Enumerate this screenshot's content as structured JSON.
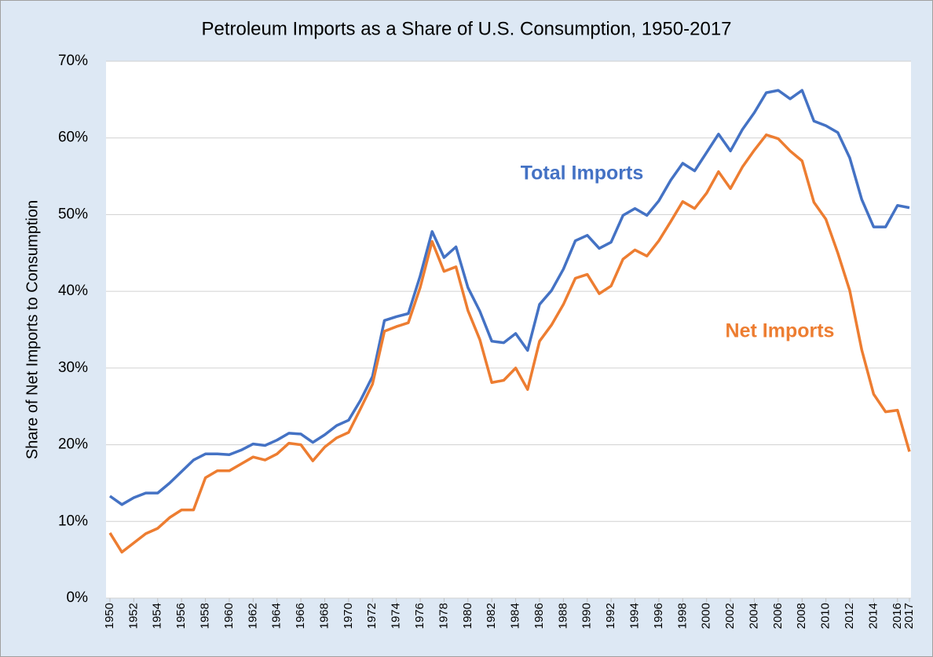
{
  "chart_data": {
    "type": "line",
    "title": "Petroleum Imports as a Share of U.S. Consumption, 1950-2017",
    "y_label": "Share of Net Imports to Consumption",
    "x": [
      1950,
      1951,
      1952,
      1953,
      1954,
      1955,
      1956,
      1957,
      1958,
      1959,
      1960,
      1961,
      1962,
      1963,
      1964,
      1965,
      1966,
      1967,
      1968,
      1969,
      1970,
      1971,
      1972,
      1973,
      1974,
      1975,
      1976,
      1977,
      1978,
      1979,
      1980,
      1981,
      1982,
      1983,
      1984,
      1985,
      1986,
      1987,
      1988,
      1989,
      1990,
      1991,
      1992,
      1993,
      1994,
      1995,
      1996,
      1997,
      1998,
      1999,
      2000,
      2001,
      2002,
      2003,
      2004,
      2005,
      2006,
      2007,
      2008,
      2009,
      2010,
      2011,
      2012,
      2013,
      2014,
      2015,
      2016,
      2017
    ],
    "series": [
      {
        "name": "Total Imports",
        "color": "#4472c4",
        "values": [
          13.3,
          12.2,
          13.1,
          13.7,
          13.7,
          15.0,
          16.5,
          18.0,
          18.8,
          18.8,
          18.7,
          19.3,
          20.1,
          19.9,
          20.6,
          21.5,
          21.4,
          20.3,
          21.3,
          22.5,
          23.2,
          25.8,
          28.9,
          36.2,
          36.7,
          37.1,
          42.0,
          47.8,
          44.4,
          45.8,
          40.5,
          37.4,
          33.5,
          33.3,
          34.5,
          32.3,
          38.3,
          40.1,
          42.9,
          46.6,
          47.3,
          45.6,
          46.4,
          49.9,
          50.8,
          49.9,
          51.8,
          54.5,
          56.7,
          55.7,
          58.1,
          60.5,
          58.3,
          61.1,
          63.3,
          65.9,
          66.2,
          65.1,
          66.2,
          62.2,
          61.6,
          60.7,
          57.4,
          52.0,
          48.4,
          48.4,
          51.2,
          50.9
        ]
      },
      {
        "name": "Net Imports",
        "color": "#ed7d31",
        "values": [
          8.5,
          6.0,
          7.2,
          8.4,
          9.1,
          10.5,
          11.5,
          11.5,
          15.7,
          16.6,
          16.6,
          17.5,
          18.4,
          18.0,
          18.8,
          20.2,
          20.0,
          17.9,
          19.7,
          20.9,
          21.6,
          24.7,
          27.9,
          34.8,
          35.4,
          35.9,
          40.5,
          46.5,
          42.6,
          43.2,
          37.5,
          33.7,
          28.1,
          28.4,
          30.0,
          27.2,
          33.5,
          35.6,
          38.3,
          41.7,
          42.2,
          39.7,
          40.7,
          44.2,
          45.4,
          44.6,
          46.6,
          49.1,
          51.7,
          50.8,
          52.8,
          55.6,
          53.4,
          56.2,
          58.4,
          60.4,
          59.9,
          58.3,
          57.0,
          51.6,
          49.4,
          45.0,
          40.1,
          32.4,
          26.6,
          24.3,
          24.5,
          19.1
        ]
      }
    ],
    "xlim": [
      1950,
      2017
    ],
    "xticks": [
      1950,
      1952,
      1954,
      1956,
      1958,
      1960,
      1962,
      1964,
      1966,
      1968,
      1970,
      1972,
      1974,
      1976,
      1978,
      1980,
      1982,
      1984,
      1986,
      1988,
      1990,
      1992,
      1994,
      1996,
      1998,
      2000,
      2002,
      2004,
      2006,
      2008,
      2010,
      2012,
      2014,
      2016,
      2017
    ],
    "ylim": [
      0,
      70
    ],
    "yticks": [
      {
        "value": 0,
        "label": "0%"
      },
      {
        "value": 10,
        "label": "10%"
      },
      {
        "value": 20,
        "label": "20%"
      },
      {
        "value": 30,
        "label": "30%"
      },
      {
        "value": 40,
        "label": "40%"
      },
      {
        "value": 50,
        "label": "50%"
      },
      {
        "value": 60,
        "label": "60%"
      },
      {
        "value": 70,
        "label": "70%"
      }
    ],
    "grid": true
  }
}
